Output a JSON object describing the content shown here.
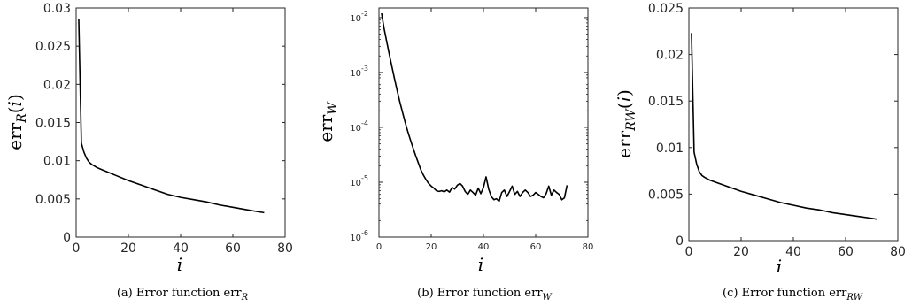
{
  "chart_data": [
    {
      "type": "line",
      "scale": "linear",
      "xlabel": "i",
      "ylabel": "err_R(i)",
      "xlim": [
        0,
        80
      ],
      "ylim": [
        0,
        0.03
      ],
      "xticks": [
        "0",
        "20",
        "40",
        "60",
        "80"
      ],
      "yticks": [
        "0",
        "0.005",
        "0.01",
        "0.015",
        "0.02",
        "0.025",
        "0.03"
      ],
      "caption": "(a) Error function err_R",
      "x": [
        1,
        2,
        3,
        4,
        5,
        6,
        8,
        10,
        15,
        20,
        25,
        30,
        35,
        40,
        45,
        50,
        55,
        60,
        65,
        70,
        72
      ],
      "y": [
        0.0285,
        0.0123,
        0.0111,
        0.0103,
        0.0098,
        0.0095,
        0.0091,
        0.0088,
        0.0081,
        0.0074,
        0.0068,
        0.0062,
        0.0056,
        0.0052,
        0.0049,
        0.0046,
        0.0042,
        0.0039,
        0.0036,
        0.0033,
        0.0032
      ]
    },
    {
      "type": "line",
      "scale": "log",
      "xlabel": "i",
      "ylabel": "err_W",
      "xlim": [
        0,
        80
      ],
      "ylim": [
        1e-06,
        0.015
      ],
      "xticks": [
        "0",
        "20",
        "40",
        "60",
        "80"
      ],
      "yticks": [
        {
          "value": 1e-06,
          "label": "10",
          "exp": "-6"
        },
        {
          "value": 1e-05,
          "label": "10",
          "exp": "-5"
        },
        {
          "value": 0.0001,
          "label": "10",
          "exp": "-4"
        },
        {
          "value": 0.001,
          "label": "10",
          "exp": "-3"
        },
        {
          "value": 0.01,
          "label": "10",
          "exp": "-2"
        }
      ],
      "caption": "(b) Error function err_W",
      "x": [
        1,
        2,
        3,
        4,
        5,
        6,
        7,
        8,
        9,
        10,
        11,
        12,
        13,
        14,
        15,
        16,
        17,
        18,
        19,
        20,
        21,
        22,
        23,
        24,
        25,
        26,
        27,
        28,
        29,
        30,
        31,
        32,
        33,
        34,
        35,
        36,
        37,
        38,
        39,
        40,
        41,
        42,
        43,
        44,
        45,
        46,
        47,
        48,
        49,
        50,
        51,
        52,
        53,
        54,
        55,
        56,
        57,
        58,
        59,
        60,
        61,
        62,
        63,
        64,
        65,
        66,
        67,
        68,
        69,
        70,
        71,
        72
      ],
      "y": [
        0.012,
        0.0062,
        0.0036,
        0.0021,
        0.00125,
        0.00075,
        0.00046,
        0.00029,
        0.00019,
        0.000125,
        8.5e-05,
        6e-05,
        4.3e-05,
        3.1e-05,
        2.3e-05,
        1.7e-05,
        1.35e-05,
        1.12e-05,
        9.5e-06,
        8.5e-06,
        7.8e-06,
        7e-06,
        6.8e-06,
        7e-06,
        6.7e-06,
        7.2e-06,
        6.6e-06,
        8e-06,
        7.5e-06,
        8.8e-06,
        9.5e-06,
        8.5e-06,
        6.8e-06,
        6e-06,
        7.2e-06,
        6.5e-06,
        5.8e-06,
        7.8e-06,
        6.2e-06,
        8e-06,
        1.25e-05,
        7.5e-06,
        5.5e-06,
        4.8e-06,
        5e-06,
        4.5e-06,
        6.5e-06,
        7.2e-06,
        5.5e-06,
        6.8e-06,
        8.5e-06,
        6e-06,
        6.8e-06,
        5.5e-06,
        6.5e-06,
        7.2e-06,
        6.5e-06,
        5.5e-06,
        5.8e-06,
        6.5e-06,
        6e-06,
        5.5e-06,
        5.2e-06,
        6.2e-06,
        8.5e-06,
        5.8e-06,
        7.2e-06,
        6.5e-06,
        6e-06,
        4.8e-06,
        5.2e-06,
        8.8e-06
      ]
    },
    {
      "type": "line",
      "scale": "linear",
      "xlabel": "i",
      "ylabel": "err_RW(i)",
      "xlim": [
        0,
        80
      ],
      "ylim": [
        0,
        0.025
      ],
      "xticks": [
        "0",
        "20",
        "40",
        "60",
        "80"
      ],
      "yticks": [
        "0",
        "0.005",
        "0.01",
        "0.015",
        "0.02",
        "0.025"
      ],
      "caption": "(c) Error function err_RW",
      "x": [
        1,
        2,
        3,
        4,
        5,
        6,
        8,
        10,
        15,
        20,
        25,
        30,
        35,
        40,
        45,
        50,
        55,
        60,
        65,
        70,
        72
      ],
      "y": [
        0.0223,
        0.0095,
        0.0082,
        0.0074,
        0.007,
        0.0068,
        0.0065,
        0.0063,
        0.0058,
        0.0053,
        0.0049,
        0.0045,
        0.0041,
        0.0038,
        0.0035,
        0.0033,
        0.003,
        0.0028,
        0.0026,
        0.0024,
        0.0023
      ]
    }
  ]
}
